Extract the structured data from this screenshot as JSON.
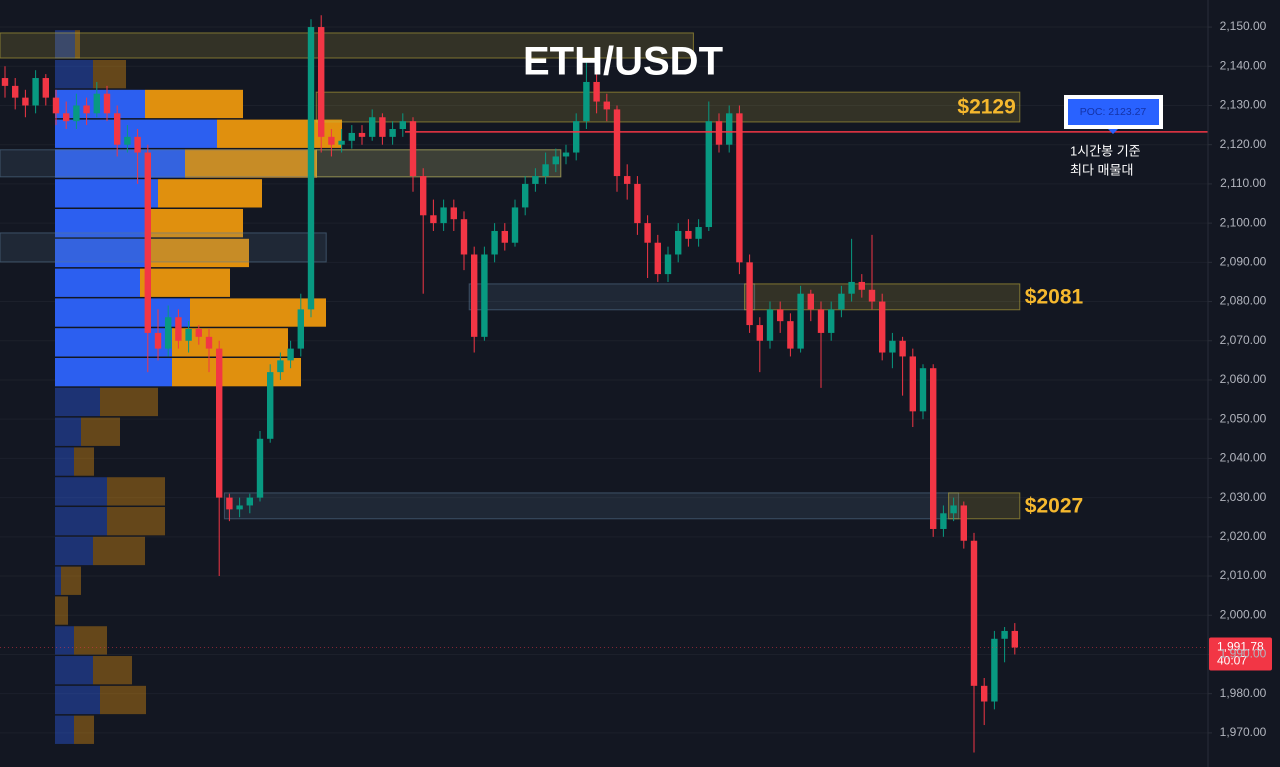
{
  "chart_data": {
    "type": "candlestick",
    "title": "ETH/USDT",
    "ylim": [
      1961.3,
      2156.9
    ],
    "yticks": [
      {
        "value": 1970,
        "label": "1,970.00"
      },
      {
        "value": 1980,
        "label": "1,980.00"
      },
      {
        "value": 1990,
        "label": "1,990.00"
      },
      {
        "value": 2000,
        "label": "2,000.00"
      },
      {
        "value": 2010,
        "label": "2,010.00"
      },
      {
        "value": 2020,
        "label": "2,020.00"
      },
      {
        "value": 2030,
        "label": "2,030.00"
      },
      {
        "value": 2040,
        "label": "2,040.00"
      },
      {
        "value": 2050,
        "label": "2,050.00"
      },
      {
        "value": 2060,
        "label": "2,060.00"
      },
      {
        "value": 2070,
        "label": "2,070.00"
      },
      {
        "value": 2080,
        "label": "2,080.00"
      },
      {
        "value": 2090,
        "label": "2,090.00"
      },
      {
        "value": 2100,
        "label": "2,100.00"
      },
      {
        "value": 2110,
        "label": "2,110.00"
      },
      {
        "value": 2120,
        "label": "2,120.00"
      },
      {
        "value": 2130,
        "label": "2,130.00"
      },
      {
        "value": 2140,
        "label": "2,140.00"
      },
      {
        "value": 2150,
        "label": "2,150.00"
      }
    ],
    "grid": true,
    "up_color": "#089981",
    "down_color": "#f23645",
    "candles": [
      [
        2137,
        2140,
        2132,
        2135
      ],
      [
        2135,
        2137,
        2129,
        2132
      ],
      [
        2132,
        2134,
        2127,
        2130
      ],
      [
        2130,
        2139,
        2128,
        2137
      ],
      [
        2137,
        2138,
        2130,
        2132
      ],
      [
        2132,
        2134,
        2125,
        2128
      ],
      [
        2128,
        2131,
        2124,
        2126
      ],
      [
        2126,
        2133,
        2124,
        2130
      ],
      [
        2130,
        2132,
        2125,
        2128
      ],
      [
        2128,
        2136,
        2127,
        2133
      ],
      [
        2133,
        2135,
        2126,
        2128
      ],
      [
        2128,
        2130,
        2117,
        2120
      ],
      [
        2120,
        2125,
        2118,
        2122
      ],
      [
        2122,
        2124,
        2110,
        2118
      ],
      [
        2118,
        2120,
        2062,
        2072
      ],
      [
        2072,
        2078,
        2065,
        2068
      ],
      [
        2068,
        2079,
        2066,
        2076
      ],
      [
        2076,
        2078,
        2068,
        2070
      ],
      [
        2070,
        2075,
        2067,
        2073
      ],
      [
        2073,
        2074,
        2069,
        2071
      ],
      [
        2071,
        2073,
        2062,
        2068
      ],
      [
        2068,
        2070,
        2010,
        2030
      ],
      [
        2030,
        2031,
        2024,
        2027
      ],
      [
        2027,
        2030,
        2025,
        2028
      ],
      [
        2028,
        2031,
        2026,
        2030
      ],
      [
        2030,
        2047,
        2029,
        2045
      ],
      [
        2045,
        2064,
        2044,
        2062
      ],
      [
        2062,
        2067,
        2060,
        2065
      ],
      [
        2065,
        2070,
        2063,
        2068
      ],
      [
        2068,
        2082,
        2066,
        2078
      ],
      [
        2078,
        2152,
        2076,
        2150
      ],
      [
        2150,
        2153,
        2118,
        2122
      ],
      [
        2122,
        2124,
        2117,
        2120
      ],
      [
        2120,
        2124,
        2118,
        2121
      ],
      [
        2121,
        2125,
        2119,
        2123
      ],
      [
        2123,
        2125,
        2120,
        2122
      ],
      [
        2122,
        2129,
        2121,
        2127
      ],
      [
        2127,
        2128,
        2120,
        2122
      ],
      [
        2122,
        2126,
        2120,
        2124
      ],
      [
        2124,
        2128,
        2122,
        2126
      ],
      [
        2126,
        2127,
        2108,
        2112
      ],
      [
        2112,
        2114,
        2082,
        2102
      ],
      [
        2102,
        2106,
        2098,
        2100
      ],
      [
        2100,
        2106,
        2098,
        2104
      ],
      [
        2104,
        2106,
        2098,
        2101
      ],
      [
        2101,
        2103,
        2088,
        2092
      ],
      [
        2092,
        2094,
        2067,
        2071
      ],
      [
        2071,
        2094,
        2070,
        2092
      ],
      [
        2092,
        2100,
        2090,
        2098
      ],
      [
        2098,
        2100,
        2093,
        2095
      ],
      [
        2095,
        2106,
        2094,
        2104
      ],
      [
        2104,
        2112,
        2102,
        2110
      ],
      [
        2110,
        2114,
        2108,
        2112
      ],
      [
        2112,
        2118,
        2110,
        2115
      ],
      [
        2115,
        2119,
        2113,
        2117
      ],
      [
        2117,
        2120,
        2115,
        2118
      ],
      [
        2118,
        2128,
        2116,
        2126
      ],
      [
        2126,
        2142,
        2124,
        2136
      ],
      [
        2136,
        2138,
        2128,
        2131
      ],
      [
        2131,
        2133,
        2126,
        2129
      ],
      [
        2129,
        2130,
        2108,
        2112
      ],
      [
        2112,
        2115,
        2106,
        2110
      ],
      [
        2110,
        2112,
        2097,
        2100
      ],
      [
        2100,
        2102,
        2086,
        2095
      ],
      [
        2095,
        2097,
        2085,
        2087
      ],
      [
        2087,
        2094,
        2085,
        2092
      ],
      [
        2092,
        2100,
        2090,
        2098
      ],
      [
        2098,
        2101,
        2094,
        2096
      ],
      [
        2096,
        2101,
        2094,
        2099
      ],
      [
        2099,
        2131,
        2098,
        2126
      ],
      [
        2126,
        2128,
        2118,
        2120
      ],
      [
        2120,
        2130,
        2118,
        2128
      ],
      [
        2128,
        2130,
        2087,
        2090
      ],
      [
        2090,
        2092,
        2072,
        2074
      ],
      [
        2074,
        2076,
        2062,
        2070
      ],
      [
        2070,
        2080,
        2068,
        2078
      ],
      [
        2078,
        2080,
        2072,
        2075
      ],
      [
        2075,
        2077,
        2066,
        2068
      ],
      [
        2068,
        2084,
        2067,
        2082
      ],
      [
        2082,
        2083,
        2075,
        2078
      ],
      [
        2078,
        2080,
        2058,
        2072
      ],
      [
        2072,
        2080,
        2070,
        2078
      ],
      [
        2078,
        2084,
        2076,
        2082
      ],
      [
        2082,
        2096,
        2080,
        2085
      ],
      [
        2085,
        2087,
        2081,
        2083
      ],
      [
        2083,
        2097,
        2078,
        2080
      ],
      [
        2080,
        2082,
        2065,
        2067
      ],
      [
        2067,
        2072,
        2063,
        2070
      ],
      [
        2070,
        2071,
        2056,
        2066
      ],
      [
        2066,
        2068,
        2048,
        2052
      ],
      [
        2052,
        2064,
        2050,
        2063
      ],
      [
        2063,
        2064,
        2020,
        2022
      ],
      [
        2022,
        2028,
        2020,
        2026
      ],
      [
        2026,
        2030,
        2024,
        2028
      ],
      [
        2028,
        2029,
        2017,
        2019
      ],
      [
        2019,
        2021,
        1965,
        1982
      ],
      [
        1982,
        1984,
        1972,
        1978
      ],
      [
        1978,
        1996,
        1976,
        1994
      ],
      [
        1994,
        1997,
        1988,
        1996
      ],
      [
        1996,
        1998,
        1990,
        1991.78
      ]
    ],
    "volume_profile": {
      "bins": [
        2149.2,
        2141.6,
        2134.0,
        2126.4,
        2118.8,
        2111.2,
        2103.6,
        2096.0,
        2088.4,
        2080.8,
        2073.2,
        2065.6,
        2058.0,
        2050.4,
        2042.8,
        2035.2,
        2027.6,
        2020.0,
        2012.4,
        2004.8,
        1997.2,
        1989.6,
        1982.0,
        1974.4,
        1966.8
      ],
      "buy": [
        20,
        38,
        90,
        162,
        130,
        103,
        90,
        90,
        85,
        135,
        117,
        117,
        45,
        26,
        19,
        52,
        52,
        38,
        6,
        0,
        19,
        38,
        45,
        19
      ],
      "sell": [
        5,
        33,
        98,
        125,
        132,
        104,
        98,
        104,
        90,
        136,
        116,
        129,
        58,
        39,
        20,
        58,
        58,
        52,
        20,
        13,
        33,
        39,
        46,
        20
      ],
      "buy_color": "#2c5ff0",
      "sell_color": "#e0900e",
      "value_area": [
        2058.0,
        2134.0
      ]
    },
    "zones": [
      {
        "low": 2142.1,
        "high": 2148.5,
        "start": 0,
        "end": 67,
        "color": "#c8b43c"
      },
      {
        "low": 2125.8,
        "high": 2133.4,
        "start": 31,
        "end": 99,
        "color": "#c8b43c",
        "label": "$2129",
        "label_position": "inside"
      },
      {
        "low": 2111.8,
        "high": 2118.7,
        "start": 0,
        "end": 54,
        "color": "#5a7896"
      },
      {
        "low": 2111.8,
        "high": 2118.7,
        "start": 31,
        "end": 54,
        "color": "#c8b43c"
      },
      {
        "low": 2090.1,
        "high": 2097.5,
        "start": 0,
        "end": 31,
        "color": "#5a7896"
      },
      {
        "low": 2077.9,
        "high": 2084.5,
        "start": 46,
        "end": 73,
        "color": "#5a7896"
      },
      {
        "low": 2077.9,
        "high": 2084.5,
        "start": 73,
        "end": 99,
        "color": "#c8b43c",
        "label": "$2081",
        "label_position": "right"
      },
      {
        "low": 2024.6,
        "high": 2031.2,
        "start": 22,
        "end": 93,
        "color": "#5a7896"
      },
      {
        "low": 2024.6,
        "high": 2031.2,
        "start": 93,
        "end": 99,
        "color": "#c8b43c",
        "label": "$2027",
        "label_position": "right"
      }
    ],
    "poc": {
      "value": 2123.27,
      "label": "POC: 2123.27",
      "color": "#f23645",
      "note": [
        "1시간봉 기준",
        "최다 매물대"
      ]
    },
    "last_price": {
      "value": 1991.78,
      "label": "1,991.78",
      "countdown": "40:07"
    }
  }
}
